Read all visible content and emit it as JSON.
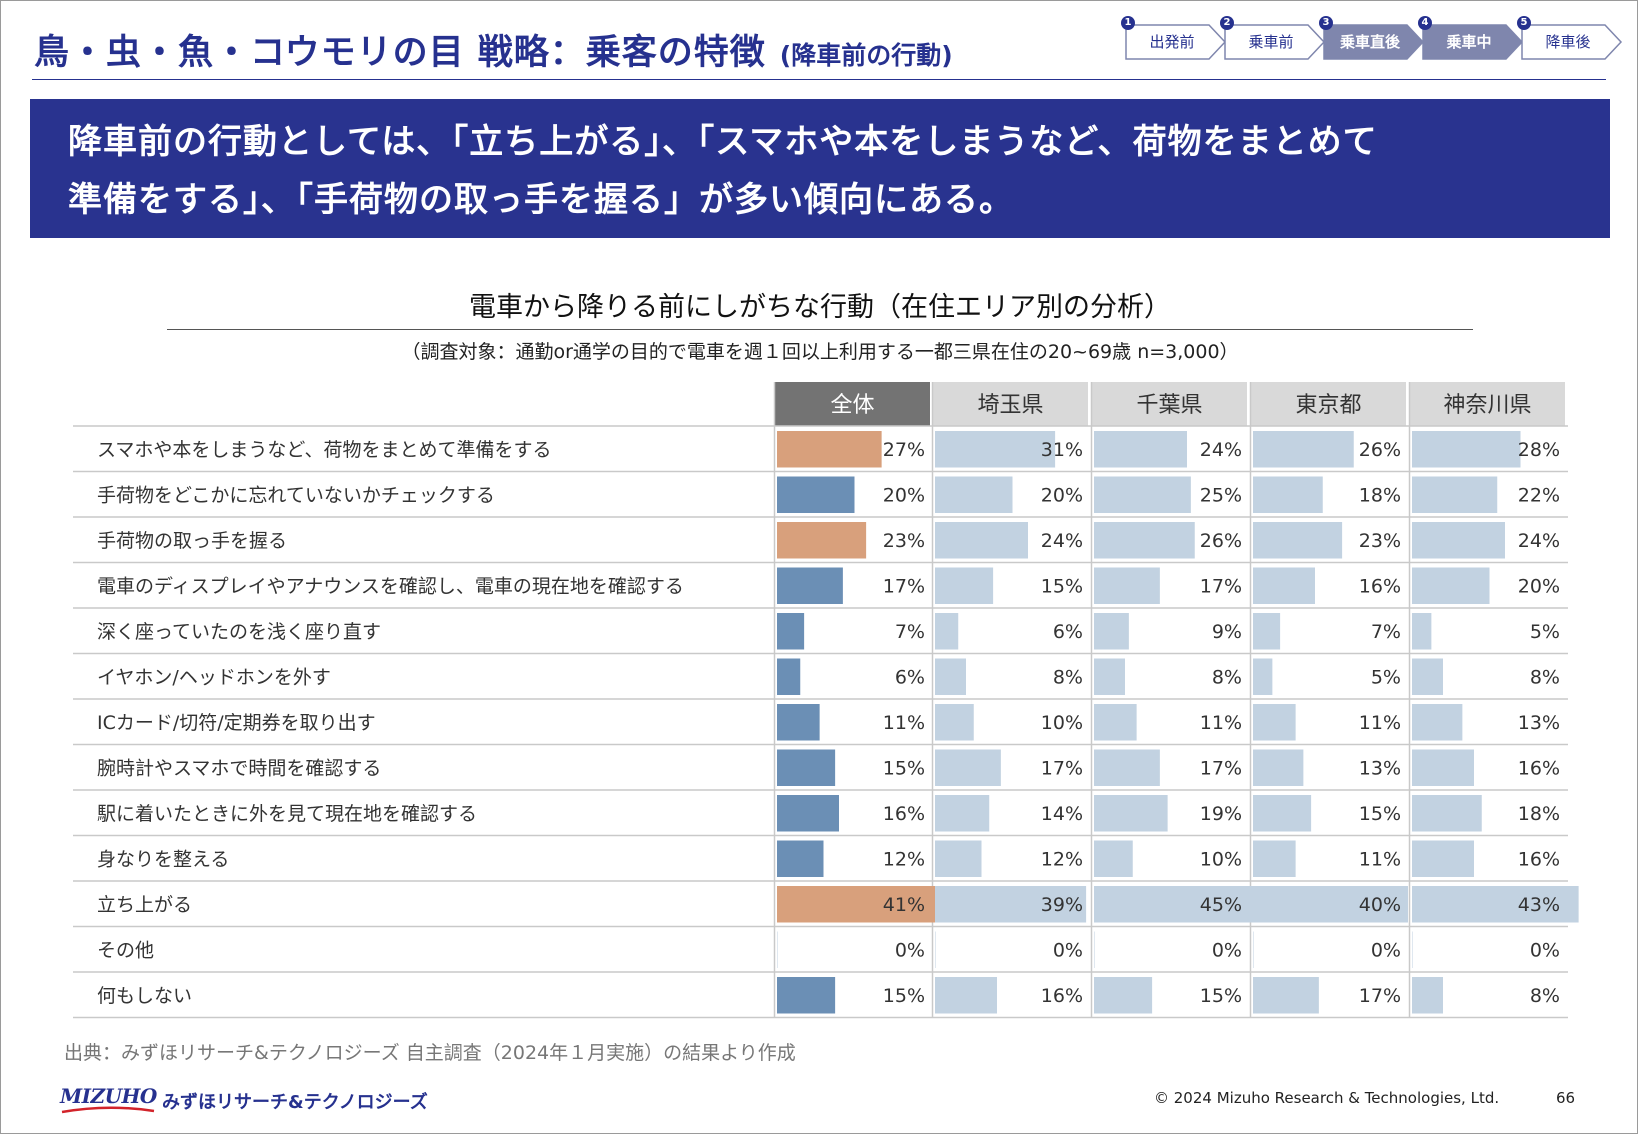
{
  "header": {
    "title_main": "鳥・虫・魚・コウモリの目 戦略：乗客の特徴",
    "title_sub": "(降車前の行動)",
    "steps": [
      {
        "num": "1",
        "label": "出発前",
        "active": false
      },
      {
        "num": "2",
        "label": "乗車前",
        "active": false
      },
      {
        "num": "3",
        "label": "乗車直後",
        "active": true
      },
      {
        "num": "4",
        "label": "乗車中",
        "active": true
      },
      {
        "num": "5",
        "label": "降車後",
        "active": false
      }
    ]
  },
  "banner": {
    "line1": "降車前の行動としては、「立ち上がる」、「スマホや本をしまうなど、荷物をまとめて",
    "line2": "準備をする」、「手荷物の取っ手を握る」が多い傾向にある。"
  },
  "chart_data": {
    "type": "table",
    "title": "電車から降りる前にしがちな行動（在住エリア別の分析）",
    "subtitle": "（調査対象：通勤or通学の目的で電車を週１回以上利用する一都三県在住の20~69歳 n=3,000）",
    "columns": [
      "全体",
      "埼玉県",
      "千葉県",
      "東京都",
      "神奈川県"
    ],
    "rows": [
      {
        "label": "スマホや本をしまうなど、荷物をまとめて準備をする",
        "values": [
          27,
          31,
          24,
          26,
          28
        ],
        "highlight": true
      },
      {
        "label": "手荷物をどこかに忘れていないかチェックする",
        "values": [
          20,
          20,
          25,
          18,
          22
        ],
        "highlight": false
      },
      {
        "label": "手荷物の取っ手を握る",
        "values": [
          23,
          24,
          26,
          23,
          24
        ],
        "highlight": true
      },
      {
        "label": "電車のディスプレイやアナウンスを確認し、電車の現在地を確認する",
        "values": [
          17,
          15,
          17,
          16,
          20
        ],
        "highlight": false
      },
      {
        "label": "深く座っていたのを浅く座り直す",
        "values": [
          7,
          6,
          9,
          7,
          5
        ],
        "highlight": false
      },
      {
        "label": "イヤホン/ヘッドホンを外す",
        "values": [
          6,
          8,
          8,
          5,
          8
        ],
        "highlight": false
      },
      {
        "label": "ICカード/切符/定期券を取り出す",
        "values": [
          11,
          10,
          11,
          11,
          13
        ],
        "highlight": false
      },
      {
        "label": "腕時計やスマホで時間を確認する",
        "values": [
          15,
          17,
          17,
          13,
          16
        ],
        "highlight": false
      },
      {
        "label": "駅に着いたときに外を見て現在地を確認する",
        "values": [
          16,
          14,
          19,
          15,
          18
        ],
        "highlight": false
      },
      {
        "label": "身なりを整える",
        "values": [
          12,
          12,
          10,
          11,
          16
        ],
        "highlight": false
      },
      {
        "label": "立ち上がる",
        "values": [
          41,
          39,
          45,
          40,
          43
        ],
        "highlight": true
      },
      {
        "label": "その他",
        "values": [
          0,
          0,
          0,
          0,
          0
        ],
        "highlight": false
      },
      {
        "label": "何もしない",
        "values": [
          15,
          16,
          15,
          17,
          8
        ],
        "highlight": false
      }
    ],
    "value_suffix": "%",
    "colors": {
      "overall_bar": "#6b8fb5",
      "overall_highlight": "#d8a07c",
      "region_bar": "#c2d2e1",
      "overall_header_bg": "#737373",
      "region_header_bg": "#d9d9d9"
    }
  },
  "footer": {
    "source": "出典：みずほリサーチ&テクノロジーズ 自主調査（2024年１月実施）の結果より作成",
    "logo_text": "MIZUHO",
    "company": "みずほリサーチ&テクノロジーズ",
    "copyright": "© 2024 Mizuho Research & Technologies, Ltd.",
    "page": "66"
  }
}
